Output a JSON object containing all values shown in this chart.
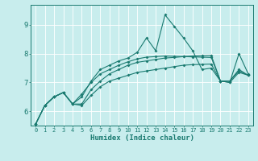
{
  "xlabel": "Humidex (Indice chaleur)",
  "background_color": "#c8eded",
  "grid_color": "#ffffff",
  "line_color": "#1a7a70",
  "xlim": [
    -0.5,
    23.5
  ],
  "ylim": [
    5.5,
    9.7
  ],
  "yticks": [
    6,
    7,
    8,
    9
  ],
  "xticks": [
    0,
    1,
    2,
    3,
    4,
    5,
    6,
    7,
    8,
    9,
    10,
    11,
    12,
    13,
    14,
    15,
    16,
    17,
    18,
    19,
    20,
    21,
    22,
    23
  ],
  "series": [
    [
      5.55,
      6.2,
      6.5,
      6.65,
      6.25,
      6.2,
      6.55,
      6.85,
      7.05,
      7.15,
      7.25,
      7.35,
      7.4,
      7.45,
      7.5,
      7.55,
      7.6,
      7.62,
      7.63,
      7.64,
      7.05,
      7.0,
      7.35,
      7.25
    ],
    [
      5.55,
      6.2,
      6.5,
      6.65,
      6.25,
      6.5,
      7.05,
      7.45,
      7.6,
      7.75,
      7.85,
      8.05,
      8.55,
      8.1,
      9.35,
      8.95,
      8.55,
      8.1,
      7.45,
      7.5,
      7.05,
      7.0,
      8.0,
      7.3
    ],
    [
      5.55,
      6.2,
      6.5,
      6.65,
      6.25,
      6.25,
      6.75,
      7.05,
      7.3,
      7.45,
      7.6,
      7.7,
      7.75,
      7.8,
      7.85,
      7.87,
      7.9,
      7.92,
      7.93,
      7.94,
      7.05,
      7.05,
      7.4,
      7.25
    ],
    [
      5.55,
      6.2,
      6.5,
      6.65,
      6.25,
      6.6,
      7.0,
      7.3,
      7.45,
      7.6,
      7.72,
      7.82,
      7.88,
      7.9,
      7.92,
      7.91,
      7.9,
      7.89,
      7.88,
      7.87,
      7.05,
      7.05,
      7.45,
      7.25
    ]
  ]
}
